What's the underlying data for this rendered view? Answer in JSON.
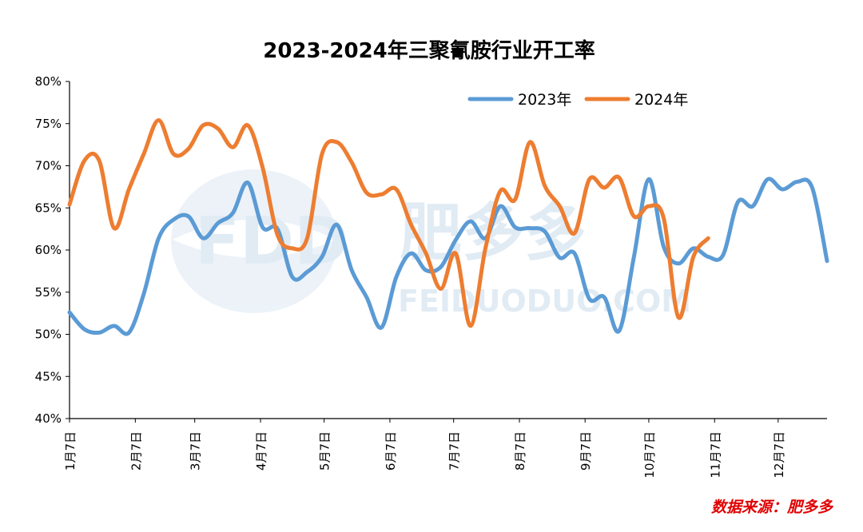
{
  "chart_data": {
    "type": "line",
    "title": "2023-2024年三聚氰胺行业开工率",
    "xlabel": "",
    "ylabel": "",
    "ylim": [
      40,
      80
    ],
    "y_ticks": [
      "40%",
      "45%",
      "50%",
      "55%",
      "60%",
      "65%",
      "70%",
      "75%",
      "80%"
    ],
    "x_ticks": [
      "1月7日",
      "2月7日",
      "3月7日",
      "4月7日",
      "5月7日",
      "6月7日",
      "7月7日",
      "8月7日",
      "9月7日",
      "10月7日",
      "11月7日",
      "12月7日"
    ],
    "x_tick_weeks": [
      0,
      4.43,
      8.43,
      12.86,
      17.14,
      21.57,
      25.86,
      30.29,
      34.71,
      39.0,
      43.43,
      47.71
    ],
    "x_max_week": 51,
    "legend_position": "top-right",
    "series": [
      {
        "name": "2023年",
        "color": "#5b9bd5",
        "x": [
          0,
          1,
          2,
          3,
          4,
          5,
          6,
          7,
          8,
          9,
          10,
          11,
          12,
          13,
          14,
          15,
          16,
          17,
          18,
          19,
          20,
          21,
          22,
          23,
          24,
          25,
          26,
          27,
          28,
          29,
          30,
          31,
          32,
          33,
          34,
          35,
          36,
          37,
          38,
          39,
          40,
          41,
          42,
          43,
          44,
          45,
          46,
          47,
          48,
          49,
          50,
          51
        ],
        "values": [
          52.6,
          50.6,
          50.2,
          51.0,
          50.2,
          54.8,
          61.4,
          63.6,
          64.0,
          61.4,
          63.2,
          64.4,
          68.0,
          62.7,
          62.5,
          56.8,
          57.4,
          59.2,
          63.0,
          57.6,
          54.4,
          50.8,
          56.8,
          59.6,
          57.6,
          58.0,
          61.2,
          63.4,
          61.4,
          65.2,
          62.7,
          62.6,
          62.2,
          59.1,
          59.6,
          54.2,
          54.4,
          50.4,
          59.2,
          68.4,
          60.4,
          58.4,
          60.2,
          59.2,
          59.4,
          65.7,
          65.2,
          68.4,
          67.2,
          68.1,
          67.4,
          58.7
        ]
      },
      {
        "name": "2024年",
        "color": "#ed7d31",
        "x": [
          0,
          1,
          2,
          3,
          4,
          5,
          6,
          7,
          8,
          9,
          10,
          11,
          12,
          13,
          14,
          15,
          16,
          17,
          18,
          19,
          20,
          21,
          22,
          23,
          24,
          25,
          26,
          27,
          28,
          29,
          30,
          31,
          32,
          33,
          34,
          35,
          36,
          37,
          38,
          39,
          40,
          41,
          42,
          43
        ],
        "values": [
          65.4,
          70.6,
          70.6,
          62.6,
          67.2,
          71.4,
          75.4,
          71.4,
          72.0,
          74.8,
          74.4,
          72.2,
          74.8,
          69.8,
          61.8,
          60.2,
          61.4,
          71.4,
          72.8,
          70.4,
          66.8,
          66.6,
          67.2,
          63.0,
          59.6,
          55.4,
          59.6,
          51.0,
          60.2,
          67.0,
          66.0,
          72.8,
          67.6,
          65.2,
          62.0,
          68.4,
          67.4,
          68.6,
          64.0,
          65.2,
          63.8,
          52.0,
          59.2,
          61.4
        ]
      }
    ],
    "watermark": [
      "肥多多",
      "FEIDUODUO.COM"
    ],
    "source_note": "数据来源：肥多多"
  }
}
